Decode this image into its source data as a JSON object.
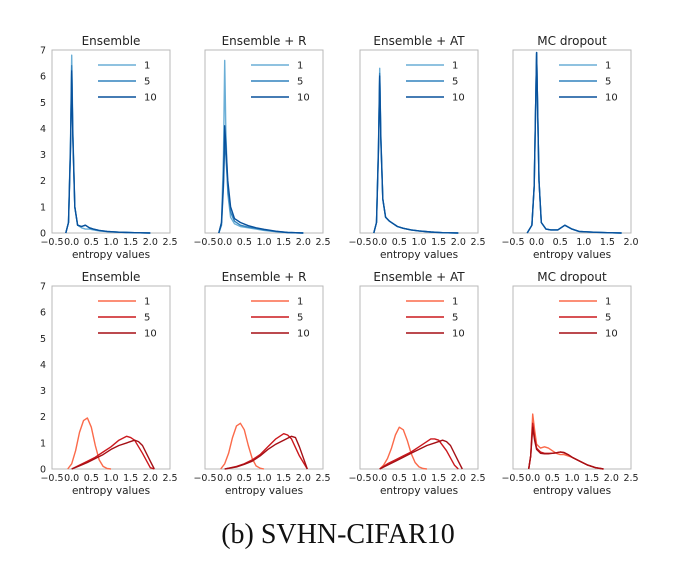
{
  "caption": "(b) SVHN-CIFAR10",
  "chart_data": [
    {
      "type": "line",
      "row": 0,
      "col": 0,
      "title": "Ensemble",
      "xlabel": "entropy values",
      "ylabel": "",
      "xlim": [
        -0.5,
        2.5
      ],
      "ylim": [
        0,
        7
      ],
      "xticks": [
        "−0.5",
        "0.0",
        "0.5",
        "1.0",
        "1.5",
        "2.0",
        "2.5"
      ],
      "yticks": [
        "0",
        "1",
        "2",
        "3",
        "4",
        "5",
        "6",
        "7"
      ],
      "legend_position": "top-right",
      "series": [
        {
          "name": "1",
          "color": "#6aaed6",
          "x": [
            -0.15,
            -0.08,
            -0.03,
            0.0,
            0.03,
            0.08,
            0.15,
            0.25,
            0.35,
            0.45,
            0.55,
            0.7,
            0.9,
            1.2,
            1.6,
            2.0
          ],
          "values": [
            0,
            0.4,
            3.5,
            6.8,
            4.0,
            1.0,
            0.3,
            0.2,
            0.15,
            0.15,
            0.12,
            0.08,
            0.05,
            0.03,
            0.01,
            0
          ]
        },
        {
          "name": "5",
          "color": "#3182bd",
          "x": [
            -0.15,
            -0.08,
            -0.03,
            0.0,
            0.03,
            0.08,
            0.15,
            0.25,
            0.35,
            0.45,
            0.55,
            0.7,
            0.9,
            1.2,
            1.6,
            2.0
          ],
          "values": [
            0,
            0.4,
            3.3,
            6.4,
            3.8,
            1.0,
            0.3,
            0.25,
            0.3,
            0.2,
            0.15,
            0.1,
            0.06,
            0.03,
            0.01,
            0
          ]
        },
        {
          "name": "10",
          "color": "#08519c",
          "x": [
            -0.15,
            -0.08,
            -0.03,
            0.0,
            0.03,
            0.08,
            0.15,
            0.25,
            0.35,
            0.45,
            0.55,
            0.7,
            0.9,
            1.2,
            1.6,
            2.0
          ],
          "values": [
            0,
            0.4,
            3.2,
            6.2,
            3.7,
            1.0,
            0.3,
            0.25,
            0.3,
            0.2,
            0.15,
            0.1,
            0.06,
            0.03,
            0.01,
            0
          ]
        }
      ]
    },
    {
      "type": "line",
      "row": 0,
      "col": 1,
      "title": "Ensemble + R",
      "xlabel": "",
      "ylabel": "",
      "xlim": [
        -0.5,
        2.5
      ],
      "ylim": [
        0,
        7
      ],
      "xticks": [
        "−0.5",
        "0.0",
        "0.5",
        "1.0",
        "1.5",
        "2.0",
        "2.5"
      ],
      "yticks": [],
      "legend_position": "top-right",
      "series": [
        {
          "name": "1",
          "color": "#6aaed6",
          "x": [
            -0.15,
            -0.08,
            -0.03,
            0.0,
            0.03,
            0.08,
            0.15,
            0.25,
            0.4,
            0.6,
            0.8,
            1.0,
            1.3,
            1.6,
            2.0
          ],
          "values": [
            0,
            0.4,
            3.0,
            6.6,
            4.0,
            1.5,
            0.6,
            0.35,
            0.25,
            0.2,
            0.15,
            0.1,
            0.05,
            0.02,
            0
          ]
        },
        {
          "name": "5",
          "color": "#3182bd",
          "x": [
            -0.15,
            -0.08,
            -0.03,
            0.0,
            0.03,
            0.08,
            0.15,
            0.25,
            0.4,
            0.6,
            0.8,
            1.0,
            1.3,
            1.6,
            2.0
          ],
          "values": [
            0,
            0.3,
            1.8,
            3.5,
            3.0,
            1.7,
            0.8,
            0.45,
            0.3,
            0.22,
            0.18,
            0.12,
            0.06,
            0.02,
            0
          ]
        },
        {
          "name": "10",
          "color": "#08519c",
          "x": [
            -0.15,
            -0.08,
            -0.03,
            0.0,
            0.03,
            0.08,
            0.15,
            0.25,
            0.4,
            0.6,
            0.8,
            1.0,
            1.3,
            1.6,
            2.0
          ],
          "values": [
            0,
            0.4,
            2.0,
            4.1,
            3.4,
            2.0,
            1.0,
            0.55,
            0.4,
            0.28,
            0.2,
            0.14,
            0.07,
            0.02,
            0
          ]
        }
      ]
    },
    {
      "type": "line",
      "row": 0,
      "col": 2,
      "title": "Ensemble + AT",
      "xlabel": "entropy values",
      "ylabel": "",
      "xlim": [
        -0.5,
        2.5
      ],
      "ylim": [
        0,
        7
      ],
      "xticks": [
        "−0.5",
        "0.0",
        "0.5",
        "1.0",
        "1.5",
        "2.0",
        "2.5"
      ],
      "yticks": [],
      "legend_position": "top-right",
      "series": [
        {
          "name": "1",
          "color": "#6aaed6",
          "x": [
            -0.15,
            -0.08,
            -0.03,
            0.0,
            0.03,
            0.08,
            0.15,
            0.25,
            0.35,
            0.45,
            0.6,
            0.8,
            1.0,
            1.3,
            1.6,
            2.0
          ],
          "values": [
            0,
            0.4,
            3.4,
            6.3,
            3.8,
            1.3,
            0.6,
            0.45,
            0.35,
            0.25,
            0.18,
            0.12,
            0.08,
            0.04,
            0.01,
            0
          ]
        },
        {
          "name": "5",
          "color": "#3182bd",
          "x": [
            -0.15,
            -0.08,
            -0.03,
            0.0,
            0.03,
            0.08,
            0.15,
            0.25,
            0.35,
            0.45,
            0.6,
            0.8,
            1.0,
            1.3,
            1.6,
            2.0
          ],
          "values": [
            0,
            0.4,
            3.3,
            6.1,
            3.7,
            1.3,
            0.6,
            0.45,
            0.35,
            0.25,
            0.18,
            0.12,
            0.08,
            0.04,
            0.01,
            0
          ]
        },
        {
          "name": "10",
          "color": "#08519c",
          "x": [
            -0.15,
            -0.08,
            -0.03,
            0.0,
            0.03,
            0.08,
            0.15,
            0.25,
            0.35,
            0.45,
            0.6,
            0.8,
            1.0,
            1.3,
            1.6,
            2.0
          ],
          "values": [
            0,
            0.4,
            3.2,
            6.0,
            3.6,
            1.3,
            0.6,
            0.45,
            0.35,
            0.25,
            0.18,
            0.12,
            0.08,
            0.04,
            0.01,
            0
          ]
        }
      ]
    },
    {
      "type": "line",
      "row": 0,
      "col": 3,
      "title": "MC dropout",
      "xlabel": "entropy values",
      "ylabel": "",
      "xlim": [
        -0.5,
        2.0
      ],
      "ylim": [
        0,
        7
      ],
      "xticks": [
        "−0.5",
        "0.0",
        "0.5",
        "1.0",
        "1.5",
        "2.0"
      ],
      "yticks": [],
      "legend_position": "top-right",
      "series": [
        {
          "name": "1",
          "color": "#6aaed6",
          "x": [
            -0.2,
            -0.1,
            -0.05,
            0.0,
            0.05,
            0.1,
            0.2,
            0.3,
            0.45,
            0.6,
            0.75,
            0.9,
            1.2,
            1.5,
            1.8
          ],
          "values": [
            0,
            0.3,
            1.8,
            6.9,
            2.0,
            0.4,
            0.15,
            0.12,
            0.12,
            0.3,
            0.15,
            0.06,
            0.03,
            0.01,
            0
          ]
        },
        {
          "name": "5",
          "color": "#3182bd",
          "x": [
            -0.2,
            -0.1,
            -0.05,
            0.0,
            0.05,
            0.1,
            0.2,
            0.3,
            0.45,
            0.6,
            0.75,
            0.9,
            1.2,
            1.5,
            1.8
          ],
          "values": [
            0,
            0.3,
            1.8,
            6.9,
            2.0,
            0.4,
            0.15,
            0.12,
            0.12,
            0.3,
            0.15,
            0.06,
            0.03,
            0.01,
            0
          ]
        },
        {
          "name": "10",
          "color": "#08519c",
          "x": [
            -0.2,
            -0.1,
            -0.05,
            0.0,
            0.05,
            0.1,
            0.2,
            0.3,
            0.45,
            0.6,
            0.75,
            0.9,
            1.2,
            1.5,
            1.8
          ],
          "values": [
            0,
            0.3,
            1.8,
            6.9,
            2.0,
            0.4,
            0.15,
            0.12,
            0.12,
            0.3,
            0.15,
            0.06,
            0.03,
            0.01,
            0
          ]
        }
      ]
    },
    {
      "type": "line",
      "row": 1,
      "col": 0,
      "title": "Ensemble",
      "xlabel": "entropy values",
      "ylabel": "",
      "xlim": [
        -0.5,
        2.5
      ],
      "ylim": [
        0,
        7
      ],
      "xticks": [
        "−0.5",
        "0.0",
        "0.5",
        "1.0",
        "1.5",
        "2.0",
        "2.5"
      ],
      "yticks": [
        "0",
        "1",
        "2",
        "3",
        "4",
        "5",
        "6",
        "7"
      ],
      "legend_position": "top-right",
      "series": [
        {
          "name": "1",
          "color": "#fb6a4a",
          "x": [
            -0.1,
            0.0,
            0.1,
            0.2,
            0.3,
            0.4,
            0.5,
            0.6,
            0.7,
            0.8,
            0.9,
            1.0
          ],
          "values": [
            0,
            0.2,
            0.7,
            1.4,
            1.85,
            1.95,
            1.6,
            0.9,
            0.35,
            0.1,
            0.02,
            0
          ]
        },
        {
          "name": "5",
          "color": "#cb181d",
          "x": [
            0.0,
            0.2,
            0.4,
            0.6,
            0.8,
            1.0,
            1.2,
            1.4,
            1.5,
            1.6,
            1.8,
            2.0,
            2.1
          ],
          "values": [
            0,
            0.15,
            0.3,
            0.45,
            0.65,
            0.85,
            1.1,
            1.25,
            1.2,
            1.1,
            0.6,
            0.05,
            0
          ]
        },
        {
          "name": "10",
          "color": "#a50f15",
          "x": [
            0.0,
            0.2,
            0.4,
            0.6,
            0.8,
            1.0,
            1.2,
            1.4,
            1.6,
            1.7,
            1.8,
            2.0,
            2.1
          ],
          "values": [
            0,
            0.12,
            0.25,
            0.4,
            0.55,
            0.75,
            0.9,
            1.0,
            1.1,
            1.05,
            0.9,
            0.3,
            0
          ]
        }
      ]
    },
    {
      "type": "line",
      "row": 1,
      "col": 1,
      "title": "Ensemble + R",
      "xlabel": "entropy values",
      "ylabel": "",
      "xlim": [
        -0.5,
        2.5
      ],
      "ylim": [
        0,
        7
      ],
      "xticks": [
        "−0.5",
        "0.0",
        "0.5",
        "1.0",
        "1.5",
        "2.0",
        "2.5"
      ],
      "yticks": [],
      "legend_position": "top-right",
      "series": [
        {
          "name": "1",
          "color": "#fb6a4a",
          "x": [
            -0.1,
            0.0,
            0.1,
            0.2,
            0.3,
            0.4,
            0.5,
            0.6,
            0.7,
            0.8,
            0.9,
            1.0
          ],
          "values": [
            0,
            0.2,
            0.6,
            1.2,
            1.65,
            1.75,
            1.5,
            0.9,
            0.4,
            0.12,
            0.03,
            0
          ]
        },
        {
          "name": "5",
          "color": "#cb181d",
          "x": [
            0.0,
            0.3,
            0.5,
            0.7,
            0.9,
            1.1,
            1.3,
            1.5,
            1.6,
            1.7,
            1.9,
            2.1
          ],
          "values": [
            0,
            0.1,
            0.2,
            0.35,
            0.55,
            0.85,
            1.15,
            1.35,
            1.3,
            1.15,
            0.5,
            0
          ]
        },
        {
          "name": "10",
          "color": "#a50f15",
          "x": [
            0.0,
            0.3,
            0.5,
            0.7,
            0.9,
            1.1,
            1.3,
            1.5,
            1.7,
            1.8,
            1.9,
            2.1
          ],
          "values": [
            0,
            0.08,
            0.18,
            0.3,
            0.5,
            0.75,
            0.95,
            1.1,
            1.25,
            1.2,
            0.85,
            0
          ]
        }
      ]
    },
    {
      "type": "line",
      "row": 1,
      "col": 2,
      "title": "Ensemble + AT",
      "xlabel": "entropy values",
      "ylabel": "",
      "xlim": [
        -0.5,
        2.5
      ],
      "ylim": [
        0,
        7
      ],
      "xticks": [
        "−0.5",
        "0.0",
        "0.5",
        "1.0",
        "1.5",
        "2.0",
        "2.5"
      ],
      "yticks": [],
      "legend_position": "top-right",
      "series": [
        {
          "name": "1",
          "color": "#fb6a4a",
          "x": [
            0.0,
            0.1,
            0.2,
            0.3,
            0.4,
            0.5,
            0.6,
            0.7,
            0.8,
            0.9,
            1.0,
            1.1,
            1.2
          ],
          "values": [
            0,
            0.15,
            0.4,
            0.8,
            1.3,
            1.6,
            1.5,
            1.1,
            0.6,
            0.25,
            0.08,
            0.02,
            0
          ]
        },
        {
          "name": "5",
          "color": "#cb181d",
          "x": [
            0.0,
            0.2,
            0.4,
            0.6,
            0.8,
            1.0,
            1.2,
            1.3,
            1.4,
            1.5,
            1.7,
            1.9,
            2.0
          ],
          "values": [
            0,
            0.2,
            0.35,
            0.5,
            0.65,
            0.85,
            1.05,
            1.15,
            1.15,
            1.1,
            0.7,
            0.15,
            0
          ]
        },
        {
          "name": "10",
          "color": "#a50f15",
          "x": [
            0.0,
            0.2,
            0.4,
            0.6,
            0.8,
            1.0,
            1.2,
            1.4,
            1.6,
            1.7,
            1.8,
            2.0,
            2.1
          ],
          "values": [
            0,
            0.15,
            0.3,
            0.45,
            0.6,
            0.75,
            0.9,
            1.0,
            1.1,
            1.05,
            0.9,
            0.3,
            0
          ]
        }
      ]
    },
    {
      "type": "line",
      "row": 1,
      "col": 3,
      "title": "MC dropout",
      "xlabel": "entropy values",
      "ylabel": "",
      "xlim": [
        -0.5,
        2.5
      ],
      "ylim": [
        0,
        7
      ],
      "xticks": [
        "−0.5",
        "0.0",
        "0.5",
        "1.0",
        "1.5",
        "2.0",
        "2.5"
      ],
      "yticks": [],
      "legend_position": "top-right",
      "series": [
        {
          "name": "1",
          "color": "#fb6a4a",
          "x": [
            -0.1,
            -0.05,
            0.0,
            0.05,
            0.1,
            0.2,
            0.3,
            0.4,
            0.5,
            0.6,
            0.7,
            0.8,
            0.9,
            1.0,
            1.2,
            1.4,
            1.6,
            1.8
          ],
          "values": [
            0,
            0.5,
            2.1,
            1.5,
            0.95,
            0.8,
            0.85,
            0.8,
            0.7,
            0.6,
            0.55,
            0.55,
            0.5,
            0.45,
            0.3,
            0.15,
            0.05,
            0
          ]
        },
        {
          "name": "5",
          "color": "#cb181d",
          "x": [
            -0.1,
            -0.05,
            0.0,
            0.05,
            0.1,
            0.2,
            0.3,
            0.4,
            0.5,
            0.6,
            0.7,
            0.8,
            0.9,
            1.0,
            1.2,
            1.4,
            1.6,
            1.8
          ],
          "values": [
            0,
            0.5,
            1.75,
            1.2,
            0.8,
            0.65,
            0.6,
            0.6,
            0.6,
            0.62,
            0.65,
            0.62,
            0.55,
            0.45,
            0.3,
            0.15,
            0.05,
            0
          ]
        },
        {
          "name": "10",
          "color": "#a50f15",
          "x": [
            -0.1,
            -0.05,
            0.0,
            0.05,
            0.1,
            0.2,
            0.3,
            0.4,
            0.5,
            0.6,
            0.7,
            0.8,
            0.9,
            1.0,
            1.2,
            1.4,
            1.6,
            1.8
          ],
          "values": [
            0,
            0.5,
            1.6,
            1.1,
            0.75,
            0.6,
            0.58,
            0.58,
            0.6,
            0.62,
            0.65,
            0.63,
            0.55,
            0.45,
            0.3,
            0.15,
            0.05,
            0
          ]
        }
      ]
    }
  ]
}
